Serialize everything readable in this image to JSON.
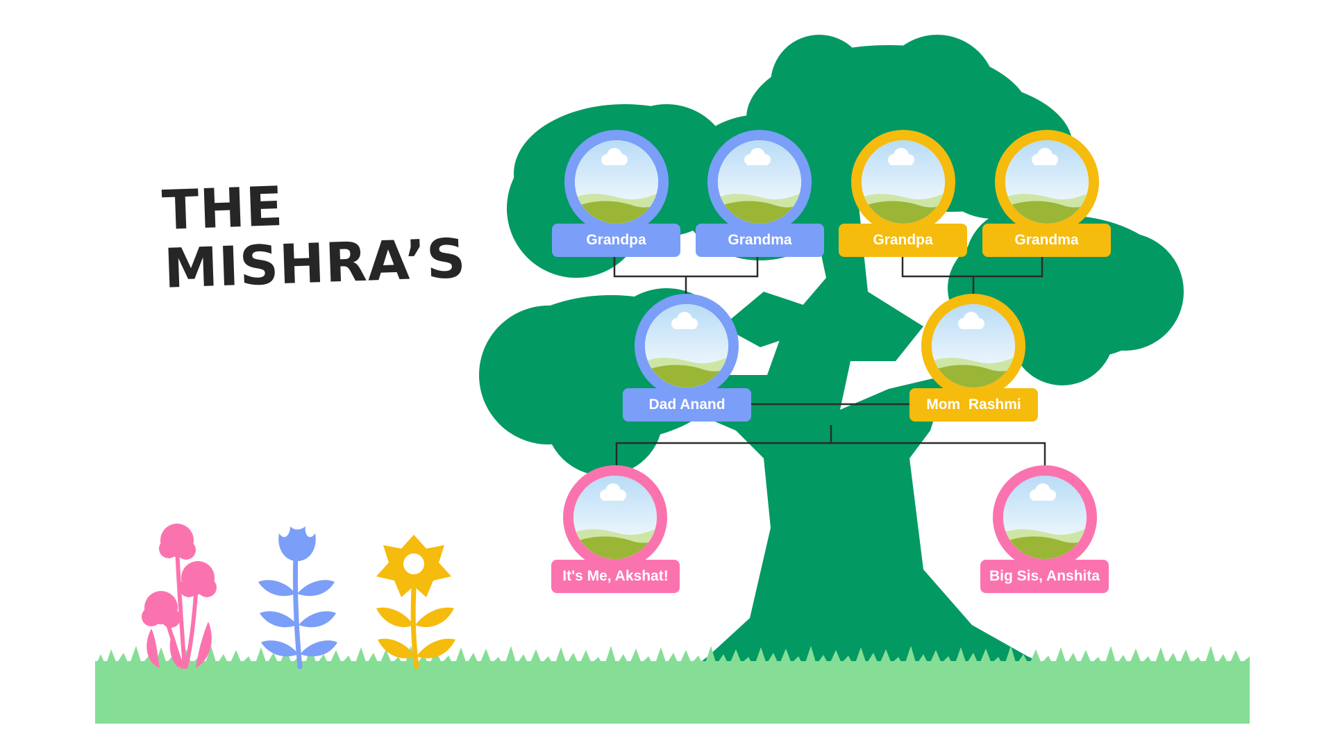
{
  "title": {
    "line1": "THE",
    "line2": "MISHRA’S"
  },
  "colors": {
    "tree": "#039963",
    "grass": "#86de96",
    "paternal": "#7b9ef8",
    "maternal": "#f5bb0d",
    "children": "#fb73ae",
    "connector": "#2b2b2b",
    "title": "#262626"
  },
  "members": {
    "paternal_grandpa": {
      "name": "Grandpa"
    },
    "paternal_grandma": {
      "name": "Grandma"
    },
    "maternal_grandpa": {
      "name": "Grandpa"
    },
    "maternal_grandma": {
      "name": "Grandma"
    },
    "dad": {
      "name": "Dad Anand"
    },
    "mom": {
      "name": "Mom  Rashmi"
    },
    "self": {
      "name": "It's Me, Akshat!"
    },
    "sister": {
      "name": "Big Sis, Anshita"
    }
  },
  "decorations": [
    "pink-flower-icon",
    "blue-flower-icon",
    "yellow-flower-icon",
    "cloud-icon"
  ]
}
